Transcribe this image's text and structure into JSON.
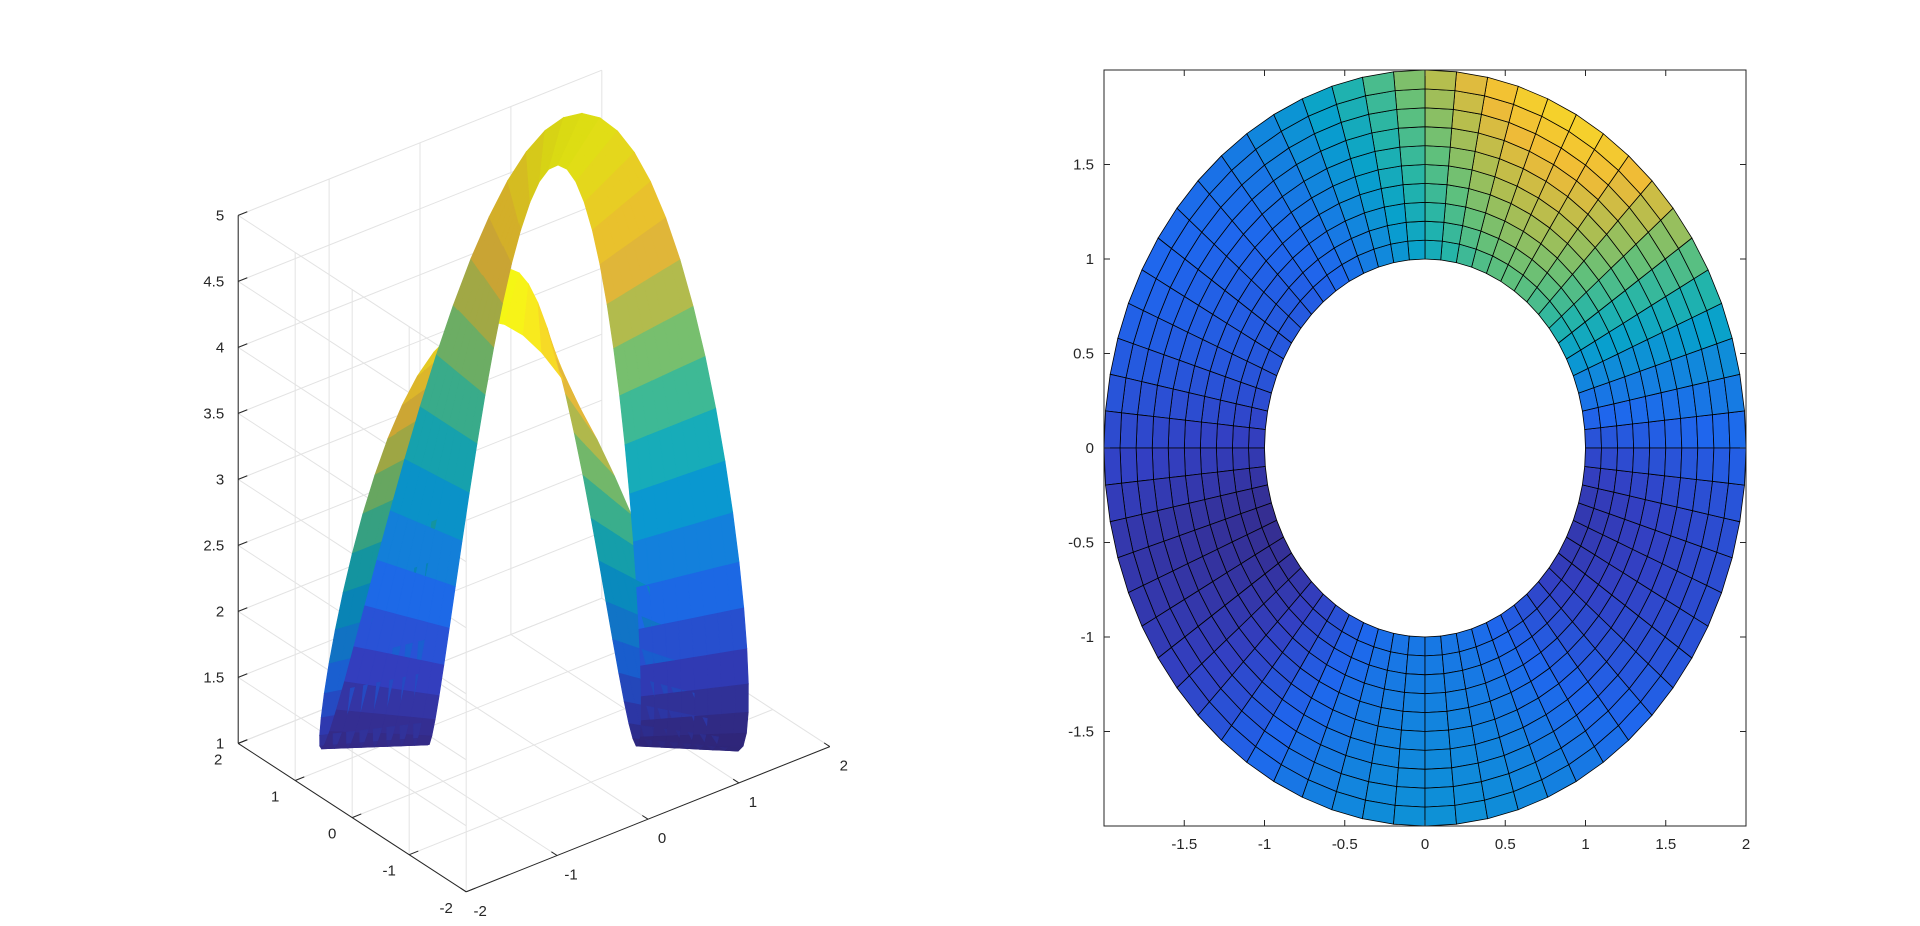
{
  "chart_data": [
    {
      "type": "surface3d",
      "title": "",
      "xlabel": "",
      "ylabel": "",
      "zlabel": "",
      "colormap": "parula",
      "grid": true,
      "xlim": [
        -2,
        2
      ],
      "ylim": [
        -2,
        2
      ],
      "zlim": [
        1,
        5
      ],
      "x_ticks": [
        "-2",
        "-1",
        "0",
        "1",
        "2"
      ],
      "y_ticks": [
        "-2",
        "-1",
        "0",
        "1",
        "2"
      ],
      "z_ticks": [
        "1",
        "1.5",
        "2",
        "2.5",
        "3",
        "3.5",
        "4",
        "4.5",
        "5"
      ],
      "surface": {
        "parametrization": "annulus r in [1,2], theta in [0, 2*pi]",
        "r_range": [
          1,
          2
        ],
        "z_range": [
          1,
          5
        ]
      }
    },
    {
      "type": "surface2d_top_view",
      "title": "",
      "xlabel": "",
      "ylabel": "",
      "colormap": "parula",
      "grid": false,
      "edge_color": "#000000",
      "xlim": [
        -2,
        2
      ],
      "ylim": [
        -2,
        2
      ],
      "x_ticks": [
        "-1.5",
        "-1",
        "-0.5",
        "0",
        "0.5",
        "1",
        "1.5",
        "2"
      ],
      "y_ticks": [
        "-1.5",
        "-1",
        "-0.5",
        "0",
        "0.5",
        "1",
        "1.5"
      ],
      "annulus": {
        "inner_radius": 1,
        "outer_radius": 2
      }
    }
  ]
}
